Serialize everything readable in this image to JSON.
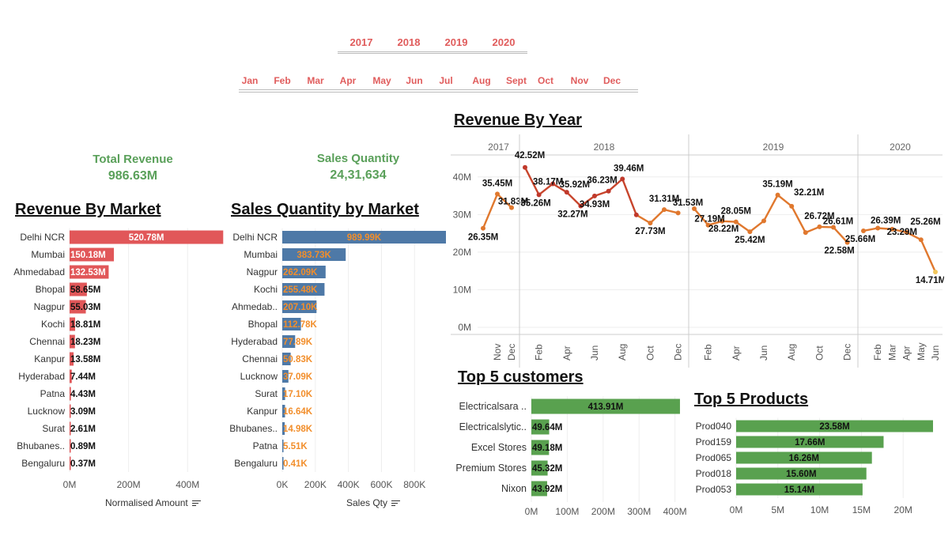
{
  "filters": {
    "years": [
      "2017",
      "2018",
      "2019",
      "2020"
    ],
    "months": [
      "Jan",
      "Feb",
      "Mar",
      "Apr",
      "May",
      "Jun",
      "Jul",
      "Aug",
      "Sept",
      "Oct",
      "Nov",
      "Dec"
    ]
  },
  "kpis": {
    "total_revenue": {
      "label": "Total Revenue",
      "value": "986.63M"
    },
    "sales_quantity": {
      "label": "Sales Quantity",
      "value": "24,31,634"
    }
  },
  "sections": {
    "revenue_by_market": "Revenue By Market",
    "sales_qty_by_market": "Sales Quantity by Market",
    "revenue_by_year": "Revenue By Year",
    "top_customers": "Top 5 customers",
    "top_products": "Top 5 Products"
  },
  "axis_titles": {
    "revenue_by_market": "Normalised Amount",
    "sales_qty_by_market": "Sales Qty"
  },
  "colors": {
    "revenue_bar": "#e15759",
    "qty_bar": "#4e79a7",
    "qty_label": "#f28e2b",
    "green_bar": "#59a14f",
    "kpi_green": "#5aa05a",
    "filter_red": "#e05c5c"
  },
  "chart_data": [
    {
      "id": "revenue_by_market",
      "type": "bar",
      "orientation": "horizontal",
      "categories": [
        "Delhi NCR",
        "Mumbai",
        "Ahmedabad",
        "Bhopal",
        "Nagpur",
        "Kochi",
        "Chennai",
        "Kanpur",
        "Hyderabad",
        "Patna",
        "Lucknow",
        "Surat",
        "Bhubanes..",
        "Bengaluru"
      ],
      "values": [
        520.78,
        150.18,
        132.53,
        58.65,
        55.03,
        18.81,
        18.23,
        13.58,
        7.44,
        4.43,
        3.09,
        2.61,
        0.89,
        0.37
      ],
      "labels": [
        "520.78M",
        "150.18M",
        "132.53M",
        "58.65M",
        "55.03M",
        "18.81M",
        "18.23M",
        "13.58M",
        "7.44M",
        "4.43M",
        "3.09M",
        "2.61M",
        "0.89M",
        "0.37M"
      ],
      "unit": "M",
      "xlabel": "Normalised Amount",
      "xticks": [
        "0M",
        "200M",
        "400M"
      ],
      "xtick_values": [
        0,
        200,
        400
      ],
      "xlim": [
        0,
        520
      ]
    },
    {
      "id": "sales_qty_by_market",
      "type": "bar",
      "orientation": "horizontal",
      "categories": [
        "Delhi NCR",
        "Mumbai",
        "Nagpur",
        "Kochi",
        "Ahmedab..",
        "Bhopal",
        "Hyderabad",
        "Chennai",
        "Lucknow",
        "Surat",
        "Kanpur",
        "Bhubanes..",
        "Patna",
        "Bengaluru"
      ],
      "values": [
        989.99,
        383.73,
        262.09,
        255.48,
        207.1,
        112.78,
        77.89,
        50.83,
        37.09,
        17.1,
        16.64,
        14.98,
        5.51,
        0.41
      ],
      "labels": [
        "989.99K",
        "383.73K",
        "262.09K",
        "255.48K",
        "207.10K",
        "112.78K",
        "77.89K",
        "50.83K",
        "37.09K",
        "17.10K",
        "16.64K",
        "14.98K",
        "5.51K",
        "0.41K"
      ],
      "unit": "K",
      "xlabel": "Sales Qty",
      "xticks": [
        "0K",
        "200K",
        "400K",
        "600K",
        "800K"
      ],
      "xtick_values": [
        0,
        200,
        400,
        600,
        800
      ],
      "xlim": [
        0,
        990
      ]
    },
    {
      "id": "revenue_by_year",
      "type": "line",
      "ylim": [
        0,
        45
      ],
      "yticks": [
        "0M",
        "10M",
        "20M",
        "30M",
        "40M"
      ],
      "ytick_values": [
        0,
        10,
        20,
        30,
        40
      ],
      "panels": [
        {
          "year": "2017",
          "x": [
            "Oct",
            "Nov",
            "Dec"
          ],
          "xticks": [
            "Nov",
            "Dec"
          ],
          "values": [
            26.35,
            35.45,
            31.83
          ],
          "labels": [
            "26.35M",
            "35.45M",
            "31.83M"
          ]
        },
        {
          "year": "2018",
          "x": [
            "Jan",
            "Feb",
            "Mar",
            "Apr",
            "May",
            "Jun",
            "Jul",
            "Aug",
            "Sep",
            "Oct",
            "Nov",
            "Dec"
          ],
          "xticks": [
            "Feb",
            "Apr",
            "Jun",
            "Aug",
            "Oct",
            "Dec"
          ],
          "values": [
            42.52,
            35.26,
            38.17,
            35.92,
            32.27,
            34.93,
            36.23,
            39.46,
            29.9,
            27.73,
            31.31,
            30.4
          ],
          "labels": [
            "42.52M",
            "35.26M",
            "38.17M",
            "35.92M",
            "32.27M",
            "34.93M",
            "36.23M",
            "39.46M",
            "",
            "27.73M",
            "31.31M",
            ""
          ]
        },
        {
          "year": "2019",
          "x": [
            "Jan",
            "Feb",
            "Mar",
            "Apr",
            "May",
            "Jun",
            "Jul",
            "Aug",
            "Sep",
            "Oct",
            "Nov",
            "Dec"
          ],
          "xticks": [
            "Feb",
            "Apr",
            "Jun",
            "Aug",
            "Oct",
            "Dec"
          ],
          "values": [
            31.53,
            27.19,
            28.22,
            28.05,
            25.42,
            28.3,
            35.19,
            32.21,
            25.2,
            26.72,
            26.61,
            22.58
          ],
          "labels": [
            "31.53M",
            "27.19M",
            "28.22M",
            "28.05M",
            "25.42M",
            "",
            "35.19M",
            "32.21M",
            "",
            "26.72M",
            "26.61M",
            "22.58M"
          ]
        },
        {
          "year": "2020",
          "x": [
            "Jan",
            "Feb",
            "Mar",
            "Apr",
            "May",
            "Jun"
          ],
          "xticks": [
            "Feb",
            "Mar",
            "Apr",
            "May",
            "Jun"
          ],
          "values": [
            25.66,
            26.39,
            26.1,
            25.26,
            23.29,
            14.71
          ],
          "labels": [
            "25.66M",
            "26.39M",
            "",
            "25.26M",
            "23.29M",
            "14.71M"
          ]
        }
      ]
    },
    {
      "id": "top_customers",
      "type": "bar",
      "orientation": "horizontal",
      "categories": [
        "Electricalsara ..",
        "Electricalslytic..",
        "Excel Stores",
        "Premium Stores",
        "Nixon"
      ],
      "values": [
        413.91,
        49.64,
        49.18,
        45.32,
        43.92
      ],
      "labels": [
        "413.91M",
        "49.64M",
        "49.18M",
        "45.32M",
        "43.92M"
      ],
      "xticks": [
        "0M",
        "100M",
        "200M",
        "300M",
        "400M"
      ],
      "xtick_values": [
        0,
        100,
        200,
        300,
        400
      ],
      "xlim": [
        0,
        414
      ]
    },
    {
      "id": "top_products",
      "type": "bar",
      "orientation": "horizontal",
      "categories": [
        "Prod040",
        "Prod159",
        "Prod065",
        "Prod018",
        "Prod053"
      ],
      "values": [
        23.58,
        17.66,
        16.26,
        15.6,
        15.14
      ],
      "labels": [
        "23.58M",
        "17.66M",
        "16.26M",
        "15.60M",
        "15.14M"
      ],
      "xticks": [
        "0M",
        "5M",
        "10M",
        "15M",
        "20M"
      ],
      "xtick_values": [
        0,
        5,
        10,
        15,
        20
      ],
      "xlim": [
        0,
        23.58
      ]
    }
  ]
}
